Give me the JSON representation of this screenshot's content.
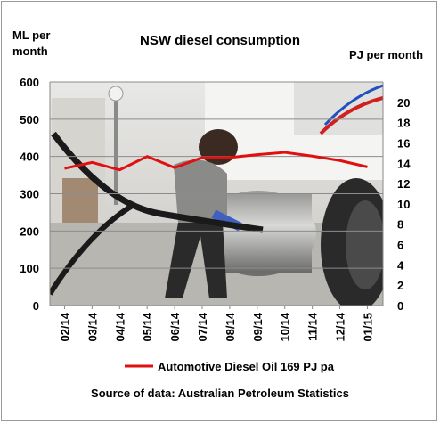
{
  "chart_data": {
    "type": "line",
    "title": "NSW diesel consumption",
    "ylabel_left": "ML per month",
    "ylabel_right": "PJ per month",
    "x": [
      "02/14",
      "03/14",
      "04/14",
      "05/14",
      "06/14",
      "07/14",
      "08/14",
      "09/14",
      "10/14",
      "11/14",
      "12/14",
      "01/15"
    ],
    "y_left_ticks": [
      "0",
      "100",
      "200",
      "300",
      "400",
      "500",
      "600"
    ],
    "y_right_ticks": [
      "0",
      "2",
      "4",
      "6",
      "8",
      "10",
      "12",
      "14",
      "16",
      "18",
      "20"
    ],
    "ylim_left": [
      0,
      600
    ],
    "ylim_right": [
      0,
      22
    ],
    "series": [
      {
        "name": "Automotive Diesel Oil 169 PJ pa",
        "color": "#e01010",
        "values": [
          368,
          384,
          364,
          400,
          370,
          397,
          397,
          405,
          411,
          401,
          389,
          372
        ]
      }
    ],
    "legend_position": "bottom",
    "grid": true,
    "source_note": "Source of data: Australian Petroleum Statistics"
  },
  "background_photo": "worker-refuelling-truck-photo"
}
